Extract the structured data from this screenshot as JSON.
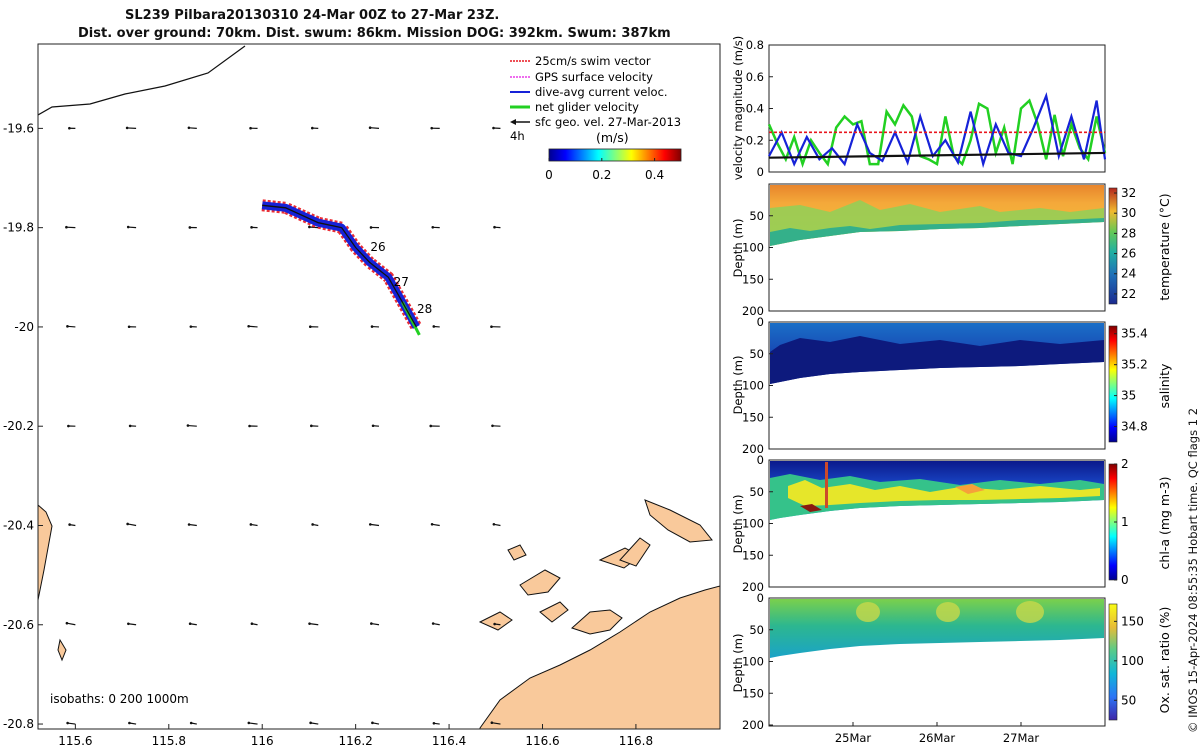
{
  "header": {
    "title_line1": "SL239 Pilbara20130310 24-Mar 00Z to 27-Mar 23Z.",
    "title_line2": "Dist. over ground: 70km. Dist. swum: 86km. Mission DOG: 392km. Swum: 387km"
  },
  "credit": "© IMOS 15-Apr-2024 08:55:35 Hobart time. QC flags 1  2",
  "colors": {
    "swim": "#e8161e",
    "gps": "#e83ce8",
    "dive": "#1622d8",
    "net": "#22d022",
    "geo": "#111111",
    "land": "#f9c99b"
  },
  "chart_data": [
    {
      "id": "map",
      "type": "scatter",
      "x_ticks": [
        "115.6",
        "115.8",
        "116",
        "116.2",
        "116.4",
        "116.6",
        "116.8"
      ],
      "y_ticks": [
        "-19.6",
        "-19.8",
        "-20",
        "-20.2",
        "-20.4",
        "-20.6",
        "-20.8"
      ],
      "xlim": [
        115.52,
        116.98
      ],
      "ylim": [
        -20.81,
        -19.43
      ],
      "legend": {
        "position": "top-right",
        "entries": [
          "25cm/s swim vector",
          "GPS surface velocity",
          "dive-avg current veloc.",
          "net glider velocity",
          "sfc geo. vel. 27-Mar-2013"
        ]
      },
      "track_day_labels": [
        "26",
        "27",
        "28"
      ],
      "track": [
        [
          116.0,
          -19.755
        ],
        [
          116.05,
          -19.76
        ],
        [
          116.12,
          -19.79
        ],
        [
          116.17,
          -19.8
        ],
        [
          116.2,
          -19.84
        ],
        [
          116.23,
          -19.87
        ],
        [
          116.27,
          -19.9
        ],
        [
          116.3,
          -19.95
        ],
        [
          116.33,
          -20.0
        ]
      ],
      "time_scale_label": "4h",
      "colorbar": {
        "label": "(m/s)",
        "min": 0,
        "max": 0.5,
        "ticks": [
          "0",
          "0.2",
          "0.4"
        ]
      },
      "isobaths_label": "isobaths: 0   200  1000m"
    },
    {
      "id": "velocity",
      "type": "line",
      "ylabel": "velocity magnitude (m/s)",
      "ylim": [
        0,
        0.8
      ],
      "y_ticks": [
        "0",
        "0.2",
        "0.4",
        "0.6",
        "0.8"
      ],
      "xlim": [
        0,
        4
      ],
      "series": [
        {
          "key": "net",
          "x": [
            0,
            0.1,
            0.2,
            0.3,
            0.4,
            0.5,
            0.6,
            0.7,
            0.8,
            0.9,
            1.0,
            1.1,
            1.2,
            1.3,
            1.4,
            1.5,
            1.6,
            1.7,
            1.8,
            1.9,
            2.0,
            2.1,
            2.2,
            2.3,
            2.4,
            2.5,
            2.6,
            2.7,
            2.8,
            2.9,
            3.0,
            3.1,
            3.2,
            3.3,
            3.4,
            3.5,
            3.6,
            3.7,
            3.8,
            3.9,
            4.0
          ],
          "values": [
            0.3,
            0.18,
            0.08,
            0.22,
            0.05,
            0.2,
            0.12,
            0.05,
            0.28,
            0.35,
            0.3,
            0.32,
            0.05,
            0.05,
            0.38,
            0.3,
            0.42,
            0.35,
            0.1,
            0.08,
            0.05,
            0.35,
            0.1,
            0.05,
            0.2,
            0.43,
            0.4,
            0.12,
            0.28,
            0.05,
            0.4,
            0.45,
            0.3,
            0.08,
            0.36,
            0.1,
            0.3,
            0.15,
            0.08,
            0.35,
            0.12
          ]
        },
        {
          "key": "dive",
          "x": [
            0,
            0.15,
            0.3,
            0.45,
            0.6,
            0.75,
            0.9,
            1.05,
            1.2,
            1.35,
            1.5,
            1.65,
            1.8,
            1.95,
            2.1,
            2.25,
            2.4,
            2.55,
            2.7,
            2.85,
            3.0,
            3.15,
            3.3,
            3.45,
            3.6,
            3.75,
            3.9,
            4.0
          ],
          "values": [
            0.1,
            0.25,
            0.05,
            0.22,
            0.08,
            0.15,
            0.05,
            0.3,
            0.12,
            0.07,
            0.25,
            0.06,
            0.35,
            0.1,
            0.2,
            0.06,
            0.38,
            0.05,
            0.3,
            0.12,
            0.1,
            0.28,
            0.48,
            0.1,
            0.35,
            0.08,
            0.45,
            0.08
          ]
        },
        {
          "key": "swim",
          "constant": 0.25
        },
        {
          "key": "geo",
          "x": [
            0,
            4
          ],
          "values": [
            0.09,
            0.12
          ]
        }
      ]
    },
    {
      "id": "temperature",
      "type": "heatmap",
      "ylabel": "Depth (m)",
      "y_ticks": [
        "50",
        "100",
        "150",
        "200"
      ],
      "ylim": [
        200,
        0
      ],
      "colorbar": {
        "label": "temperature (°C)",
        "min": 21,
        "max": 32.5,
        "ticks": [
          "32",
          "30",
          "28",
          "26",
          "24",
          "22"
        ]
      }
    },
    {
      "id": "salinity",
      "type": "heatmap",
      "ylabel": "Depth (m)",
      "y_ticks": [
        "0",
        "50",
        "100",
        "150",
        "200"
      ],
      "ylim": [
        200,
        0
      ],
      "colorbar": {
        "label": "salinity",
        "min": 34.7,
        "max": 35.45,
        "ticks": [
          "35.4",
          "35.2",
          "35",
          "34.8"
        ]
      }
    },
    {
      "id": "chla",
      "type": "heatmap",
      "ylabel": "Depth (m)",
      "y_ticks": [
        "0",
        "50",
        "100",
        "150",
        "200"
      ],
      "ylim": [
        200,
        0
      ],
      "colorbar": {
        "label": "chl-a (mg m-3)",
        "min": 0,
        "max": 2,
        "ticks": [
          "2",
          "1",
          "0"
        ]
      }
    },
    {
      "id": "oxygen",
      "type": "heatmap",
      "ylabel": "Depth (m)",
      "y_ticks": [
        "0",
        "50",
        "100",
        "150",
        "200"
      ],
      "ylim": [
        200,
        0
      ],
      "x_ticks": [
        "25Mar",
        "26Mar",
        "27Mar"
      ],
      "x_tick_values": [
        1,
        2,
        3
      ],
      "colorbar": {
        "label": "Ox. sat. ratio (%)",
        "min": 25,
        "max": 172,
        "ticks": [
          "150",
          "100",
          "50"
        ]
      }
    }
  ]
}
